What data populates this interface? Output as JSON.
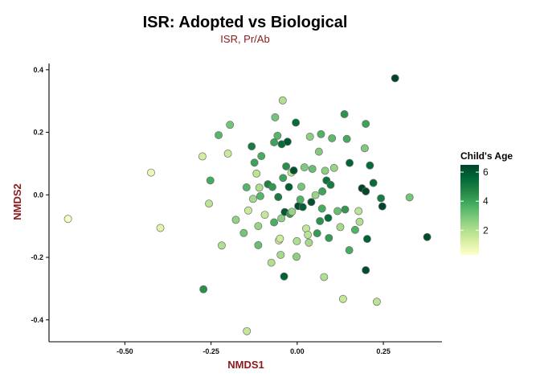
{
  "chart_data": {
    "type": "scatter",
    "title": "ISR: Adopted vs Biological",
    "subtitle": "ISR, Pr/Ab",
    "xlabel": "NMDS1",
    "ylabel": "NMDS2",
    "xlim": [
      -0.72,
      0.42
    ],
    "ylim": [
      -0.47,
      0.42
    ],
    "xticks": [
      -0.5,
      -0.25,
      0.0,
      0.25
    ],
    "xtick_labels": [
      "-0.50",
      "-0.25",
      "0.00",
      "0.25"
    ],
    "yticks": [
      -0.4,
      -0.2,
      0.0,
      0.2,
      0.4
    ],
    "ytick_labels": [
      "-0.4",
      "-0.2",
      "0.0",
      "0.2",
      "0.4"
    ],
    "grid": false,
    "legend": {
      "title": "Child's Age",
      "placement": "right",
      "range": [
        0.3,
        6.5
      ],
      "ticks": [
        2,
        4,
        6
      ],
      "tick_labels": [
        "2",
        "4",
        "6"
      ]
    },
    "colors": {
      "text_accent": "#8b1a1a",
      "point_stroke": "#6e6e6e",
      "scale": [
        "#ffffcc",
        "#d9f0a3",
        "#addd8e",
        "#78c679",
        "#41ab5d",
        "#238443",
        "#006837",
        "#004529"
      ]
    },
    "points": [
      {
        "x": -0.665,
        "y": -0.077,
        "age": 0.5
      },
      {
        "x": -0.424,
        "y": 0.071,
        "age": 0.8
      },
      {
        "x": -0.397,
        "y": -0.106,
        "age": 1.0
      },
      {
        "x": -0.275,
        "y": 0.123,
        "age": 1.3
      },
      {
        "x": -0.272,
        "y": -0.302,
        "age": 4.5
      },
      {
        "x": -0.256,
        "y": -0.028,
        "age": 1.8
      },
      {
        "x": -0.252,
        "y": 0.046,
        "age": 3.8
      },
      {
        "x": -0.228,
        "y": 0.191,
        "age": 3.5
      },
      {
        "x": -0.219,
        "y": -0.162,
        "age": 2.0
      },
      {
        "x": -0.201,
        "y": 0.132,
        "age": 1.5
      },
      {
        "x": -0.195,
        "y": 0.224,
        "age": 3.0
      },
      {
        "x": -0.178,
        "y": -0.08,
        "age": 2.5
      },
      {
        "x": -0.155,
        "y": -0.122,
        "age": 3.0
      },
      {
        "x": -0.147,
        "y": 0.024,
        "age": 3.5
      },
      {
        "x": -0.142,
        "y": -0.05,
        "age": 1.5
      },
      {
        "x": -0.132,
        "y": 0.155,
        "age": 5.0
      },
      {
        "x": -0.128,
        "y": -0.013,
        "age": 2.2
      },
      {
        "x": -0.124,
        "y": 0.103,
        "age": 4.0
      },
      {
        "x": -0.118,
        "y": 0.068,
        "age": 1.8
      },
      {
        "x": -0.113,
        "y": -0.161,
        "age": 3.2
      },
      {
        "x": -0.113,
        "y": -0.1,
        "age": 2.4
      },
      {
        "x": -0.11,
        "y": 0.023,
        "age": 2.0
      },
      {
        "x": -0.107,
        "y": -0.004,
        "age": 3.5
      },
      {
        "x": -0.104,
        "y": 0.124,
        "age": 3.8
      },
      {
        "x": -0.094,
        "y": -0.064,
        "age": 1.6
      },
      {
        "x": -0.085,
        "y": 0.034,
        "age": 4.8
      },
      {
        "x": -0.075,
        "y": -0.217,
        "age": 2.0
      },
      {
        "x": -0.072,
        "y": 0.025,
        "age": 4.3
      },
      {
        "x": -0.067,
        "y": 0.168,
        "age": 4.0
      },
      {
        "x": -0.067,
        "y": -0.088,
        "age": 3.7
      },
      {
        "x": -0.064,
        "y": 0.248,
        "age": 3.0
      },
      {
        "x": -0.057,
        "y": 0.189,
        "age": 3.5
      },
      {
        "x": -0.055,
        "y": -0.007,
        "age": 5.0
      },
      {
        "x": -0.053,
        "y": -0.146,
        "age": 1.2
      },
      {
        "x": -0.05,
        "y": -0.14,
        "age": 1.4
      },
      {
        "x": -0.048,
        "y": -0.192,
        "age": 2.2
      },
      {
        "x": -0.046,
        "y": -0.075,
        "age": 2.6
      },
      {
        "x": -0.045,
        "y": 0.162,
        "age": 5.5
      },
      {
        "x": -0.042,
        "y": 0.302,
        "age": 2.0
      },
      {
        "x": -0.041,
        "y": 0.054,
        "age": 4.0
      },
      {
        "x": -0.038,
        "y": -0.261,
        "age": 5.8
      },
      {
        "x": -0.036,
        "y": -0.055,
        "age": 6.0
      },
      {
        "x": -0.032,
        "y": 0.091,
        "age": 4.5
      },
      {
        "x": -0.028,
        "y": 0.17,
        "age": 6.0
      },
      {
        "x": -0.024,
        "y": 0.025,
        "age": 5.8
      },
      {
        "x": -0.021,
        "y": -0.061,
        "age": 4.2
      },
      {
        "x": -0.017,
        "y": 0.071,
        "age": 1.8
      },
      {
        "x": -0.015,
        "y": -0.054,
        "age": 2.4
      },
      {
        "x": -0.01,
        "y": 0.078,
        "age": 6.2
      },
      {
        "x": -0.004,
        "y": 0.231,
        "age": 5.5
      },
      {
        "x": -0.002,
        "y": -0.198,
        "age": 2.6
      },
      {
        "x": -0.001,
        "y": -0.148,
        "age": 2.0
      },
      {
        "x": 0.003,
        "y": -0.036,
        "age": 6.3
      },
      {
        "x": 0.009,
        "y": -0.015,
        "age": 3.6
      },
      {
        "x": 0.012,
        "y": 0.026,
        "age": 3.0
      },
      {
        "x": 0.016,
        "y": -0.039,
        "age": 5.8
      },
      {
        "x": 0.021,
        "y": 0.088,
        "age": 2.8
      },
      {
        "x": 0.026,
        "y": -0.108,
        "age": 1.6
      },
      {
        "x": 0.031,
        "y": -0.128,
        "age": 1.8
      },
      {
        "x": 0.034,
        "y": -0.153,
        "age": 2.2
      },
      {
        "x": 0.037,
        "y": 0.186,
        "age": 2.6
      },
      {
        "x": 0.041,
        "y": -0.023,
        "age": 6.2
      },
      {
        "x": 0.044,
        "y": 0.083,
        "age": 3.2
      },
      {
        "x": 0.053,
        "y": -0.001,
        "age": 2.4
      },
      {
        "x": 0.058,
        "y": -0.123,
        "age": 4.2
      },
      {
        "x": 0.063,
        "y": 0.138,
        "age": 2.8
      },
      {
        "x": 0.066,
        "y": -0.084,
        "age": 4.4
      },
      {
        "x": 0.069,
        "y": 0.194,
        "age": 3.6
      },
      {
        "x": 0.072,
        "y": -0.044,
        "age": 3.8
      },
      {
        "x": 0.073,
        "y": 0.011,
        "age": 4.0
      },
      {
        "x": 0.078,
        "y": -0.263,
        "age": 2.0
      },
      {
        "x": 0.081,
        "y": 0.077,
        "age": 2.6
      },
      {
        "x": 0.085,
        "y": 0.046,
        "age": 5.3
      },
      {
        "x": 0.09,
        "y": -0.074,
        "age": 5.5
      },
      {
        "x": 0.092,
        "y": -0.138,
        "age": 4.2
      },
      {
        "x": 0.097,
        "y": 0.032,
        "age": 5.0
      },
      {
        "x": 0.101,
        "y": 0.181,
        "age": 3.4
      },
      {
        "x": 0.107,
        "y": 0.086,
        "age": 2.4
      },
      {
        "x": 0.117,
        "y": -0.052,
        "age": 3.2
      },
      {
        "x": 0.125,
        "y": -0.103,
        "age": 2.2
      },
      {
        "x": 0.133,
        "y": -0.333,
        "age": 1.6
      },
      {
        "x": 0.137,
        "y": 0.258,
        "age": 4.4
      },
      {
        "x": 0.139,
        "y": -0.047,
        "age": 4.3
      },
      {
        "x": 0.144,
        "y": 0.179,
        "age": 3.8
      },
      {
        "x": 0.151,
        "y": -0.177,
        "age": 3.8
      },
      {
        "x": 0.152,
        "y": 0.102,
        "age": 5.7
      },
      {
        "x": 0.168,
        "y": -0.112,
        "age": 3.6
      },
      {
        "x": 0.178,
        "y": -0.052,
        "age": 1.8
      },
      {
        "x": 0.181,
        "y": -0.086,
        "age": 2.0
      },
      {
        "x": 0.188,
        "y": 0.021,
        "age": 6.5
      },
      {
        "x": 0.196,
        "y": 0.149,
        "age": 2.8
      },
      {
        "x": 0.199,
        "y": 0.227,
        "age": 4.0
      },
      {
        "x": 0.199,
        "y": 0.011,
        "age": 6.4
      },
      {
        "x": 0.199,
        "y": -0.241,
        "age": 6.3
      },
      {
        "x": 0.203,
        "y": -0.141,
        "age": 5.8
      },
      {
        "x": 0.211,
        "y": 0.094,
        "age": 5.5
      },
      {
        "x": 0.221,
        "y": 0.038,
        "age": 5.5
      },
      {
        "x": 0.231,
        "y": -0.342,
        "age": 1.8
      },
      {
        "x": 0.243,
        "y": -0.011,
        "age": 5.0
      },
      {
        "x": 0.247,
        "y": -0.037,
        "age": 6.5
      },
      {
        "x": 0.284,
        "y": 0.373,
        "age": 6.5
      },
      {
        "x": 0.326,
        "y": -0.008,
        "age": 3.0
      },
      {
        "x": 0.377,
        "y": -0.135,
        "age": 6.3
      },
      {
        "x": -0.146,
        "y": -0.436,
        "age": 1.6
      }
    ]
  }
}
